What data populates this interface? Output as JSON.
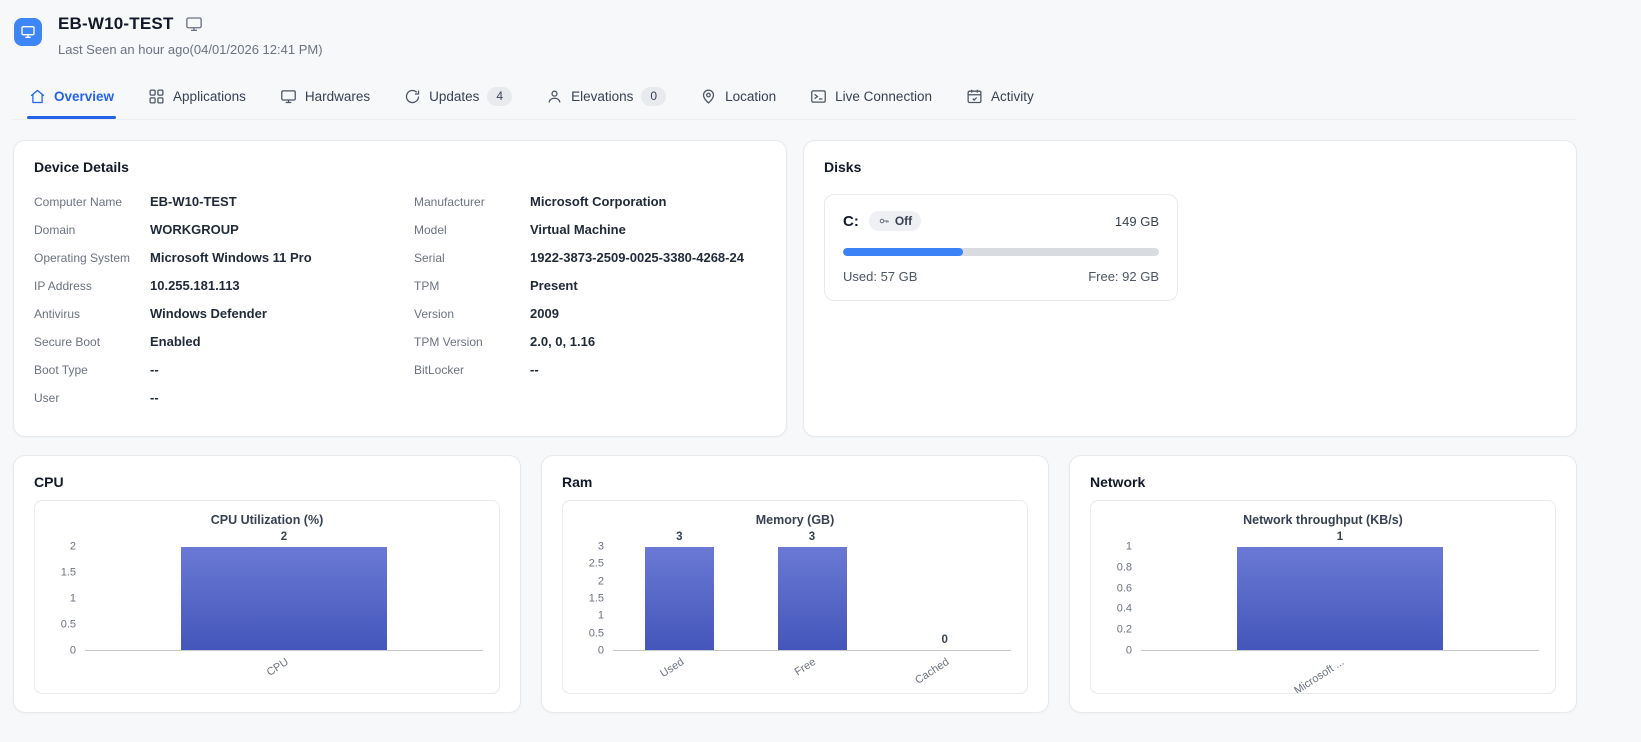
{
  "colors": {
    "accent": "#2563eb",
    "app_icon_bg": "#3e86f5",
    "progress_fill": "#3b82f6",
    "bar_gradient_top": "#6a79d4",
    "bar_gradient_bottom": "#4456ba"
  },
  "header": {
    "device_name": "EB-W10-TEST",
    "last_seen": "Last Seen an hour ago(04/01/2026 12:41 PM)"
  },
  "tabs": [
    {
      "label": "Overview",
      "icon": "home-icon",
      "active": true
    },
    {
      "label": "Applications",
      "icon": "grid-icon"
    },
    {
      "label": "Hardwares",
      "icon": "monitor-icon"
    },
    {
      "label": "Updates",
      "icon": "refresh-icon",
      "badge": "4"
    },
    {
      "label": "Elevations",
      "icon": "user-icon",
      "badge": "0"
    },
    {
      "label": "Location",
      "icon": "pin-icon"
    },
    {
      "label": "Live Connection",
      "icon": "terminal-icon"
    },
    {
      "label": "Activity",
      "icon": "calendar-icon"
    }
  ],
  "device_details": {
    "title": "Device Details",
    "left": [
      {
        "label": "Computer Name",
        "value": "EB-W10-TEST"
      },
      {
        "label": "Domain",
        "value": "WORKGROUP"
      },
      {
        "label": "Operating System",
        "value": "Microsoft Windows 11 Pro"
      },
      {
        "label": "IP Address",
        "value": "10.255.181.113"
      },
      {
        "label": "Antivirus",
        "value": "Windows Defender"
      },
      {
        "label": "Secure Boot",
        "value": "Enabled"
      },
      {
        "label": "Boot Type",
        "value": "--"
      },
      {
        "label": "User",
        "value": "--"
      }
    ],
    "right": [
      {
        "label": "Manufacturer",
        "value": "Microsoft Corporation"
      },
      {
        "label": "Model",
        "value": "Virtual Machine"
      },
      {
        "label": "Serial",
        "value": "1922-3873-2509-0025-3380-4268-24"
      },
      {
        "label": "TPM",
        "value": "Present"
      },
      {
        "label": "Version",
        "value": "2009"
      },
      {
        "label": "TPM Version",
        "value": "2.0, 0, 1.16"
      },
      {
        "label": "BitLocker",
        "value": "--"
      }
    ]
  },
  "disks": {
    "title": "Disks",
    "drive": {
      "letter": "C:",
      "encryption_badge": "Off",
      "total": "149 GB",
      "used_label": "Used: 57 GB",
      "free_label": "Free: 92 GB",
      "used_percent": 38
    }
  },
  "chart_cards": [
    {
      "title": "CPU"
    },
    {
      "title": "Ram"
    },
    {
      "title": "Network"
    }
  ],
  "chart_data": [
    {
      "type": "bar",
      "title": "CPU Utilization (%)",
      "categories": [
        "CPU"
      ],
      "values": [
        2
      ],
      "ylim": [
        0,
        2
      ],
      "yticks": [
        0,
        0.5,
        1,
        1.5,
        2
      ],
      "grid": false,
      "legend": false
    },
    {
      "type": "bar",
      "title": "Memory (GB)",
      "categories": [
        "Used",
        "Free",
        "Cached"
      ],
      "values": [
        3,
        3,
        0
      ],
      "ylim": [
        0,
        3
      ],
      "yticks": [
        0,
        0.5,
        1,
        1.5,
        2,
        2.5,
        3
      ],
      "grid": false,
      "legend": false
    },
    {
      "type": "bar",
      "title": "Network throughput (KB/s)",
      "categories": [
        "Microsoft ..."
      ],
      "values": [
        1
      ],
      "ylim": [
        0,
        1
      ],
      "yticks": [
        0,
        0.2,
        0.4,
        0.6,
        0.8,
        1
      ],
      "grid": false,
      "legend": false
    }
  ]
}
